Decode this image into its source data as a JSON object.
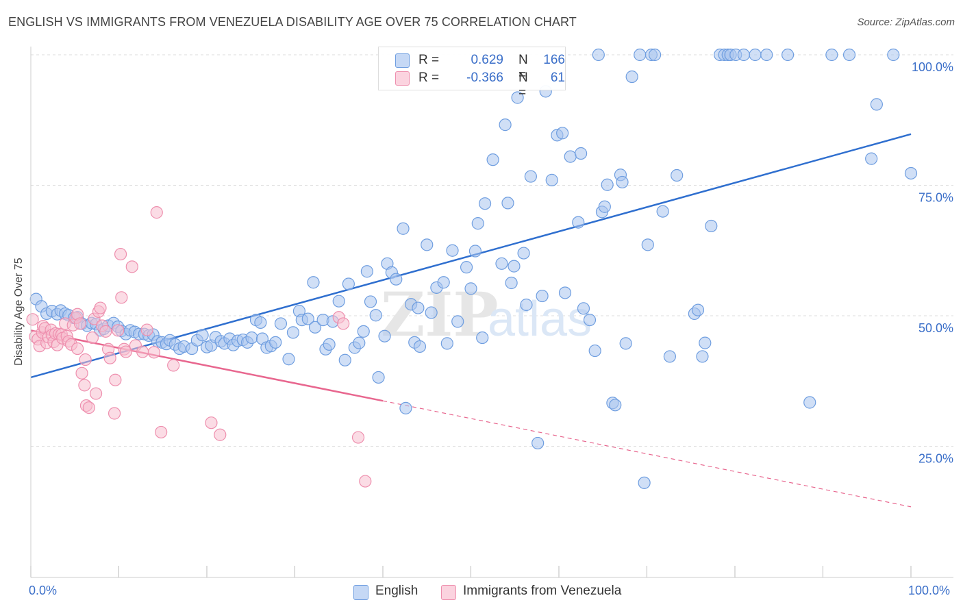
{
  "title": "ENGLISH VS IMMIGRANTS FROM VENEZUELA DISABILITY AGE OVER 75 CORRELATION CHART",
  "source": "Source: ZipAtlas.com",
  "watermark": "ZIPatlas",
  "legend_top": {
    "rows": [
      {
        "r_label": "R =",
        "r_value": "0.629",
        "n_label": "N =",
        "n_value": "166",
        "color": "#8fb3e8"
      },
      {
        "r_label": "R =",
        "r_value": "-0.366",
        "n_label": "N =",
        "n_value": "61",
        "color": "#f4a9c0"
      }
    ]
  },
  "legend_bottom": [
    {
      "label": "English",
      "color": "#8fb3e8"
    },
    {
      "label": "Immigrants from Venezuela",
      "color": "#f4a9c0"
    }
  ],
  "colors": {
    "blue_fill": "#a9c5ee",
    "blue_stroke": "#6f9ee0",
    "blue_line": "#2f6fcf",
    "pink_fill": "#f7bfd0",
    "pink_stroke": "#ee8fae",
    "pink_line": "#e8678f",
    "grid": "#dddddd",
    "tick_text": "#3b6fc9"
  },
  "chart_data": {
    "type": "scatter",
    "title": "ENGLISH VS IMMIGRANTS FROM VENEZUELA DISABILITY AGE OVER 75 CORRELATION CHART",
    "xlabel": "",
    "ylabel": "Disability Age Over 75",
    "xlim": [
      0,
      100
    ],
    "ylim": [
      0,
      102
    ],
    "x_tick_labels": [
      "0.0%",
      "100.0%"
    ],
    "y_ticks": [
      25,
      50,
      75,
      100
    ],
    "y_tick_labels": [
      "25.0%",
      "50.0%",
      "75.0%",
      "100.0%"
    ],
    "grid": true,
    "legend_position": "top-center",
    "series": [
      {
        "name": "English",
        "r": 0.629,
        "n": 166,
        "trend": {
          "x": [
            0,
            100
          ],
          "y": [
            38.2,
            84.8
          ]
        },
        "points": [
          [
            0.6,
            53.2
          ],
          [
            1.2,
            51.8
          ],
          [
            1.8,
            50.4
          ],
          [
            2.4,
            50.9
          ],
          [
            3.0,
            50.3
          ],
          [
            3.4,
            51.0
          ],
          [
            3.9,
            50.4
          ],
          [
            4.3,
            50.1
          ],
          [
            4.9,
            49.6
          ],
          [
            5.3,
            49.7
          ],
          [
            5.8,
            48.5
          ],
          [
            6.4,
            48.1
          ],
          [
            6.9,
            48.6
          ],
          [
            7.4,
            48.4
          ],
          [
            7.9,
            47.2
          ],
          [
            8.3,
            47.5
          ],
          [
            8.8,
            48.1
          ],
          [
            9.4,
            48.6
          ],
          [
            9.9,
            47.9
          ],
          [
            10.3,
            47.1
          ],
          [
            10.8,
            46.5
          ],
          [
            11.3,
            47.2
          ],
          [
            11.8,
            46.9
          ],
          [
            12.3,
            46.5
          ],
          [
            12.9,
            46.5
          ],
          [
            13.4,
            46.2
          ],
          [
            13.9,
            46.4
          ],
          [
            14.4,
            45.1
          ],
          [
            14.9,
            44.9
          ],
          [
            15.4,
            44.6
          ],
          [
            15.8,
            45.3
          ],
          [
            16.4,
            44.5
          ],
          [
            16.9,
            43.7
          ],
          [
            17.4,
            44.1
          ],
          [
            18.3,
            43.7
          ],
          [
            18.9,
            45.3
          ],
          [
            19.5,
            46.3
          ],
          [
            20.0,
            44.0
          ],
          [
            20.5,
            44.3
          ],
          [
            21.0,
            45.9
          ],
          [
            21.6,
            45.1
          ],
          [
            22.0,
            44.7
          ],
          [
            22.6,
            45.6
          ],
          [
            23.0,
            44.4
          ],
          [
            23.5,
            45.2
          ],
          [
            24.1,
            45.4
          ],
          [
            24.6,
            44.9
          ],
          [
            25.1,
            45.8
          ],
          [
            25.6,
            49.2
          ],
          [
            26.1,
            48.7
          ],
          [
            26.3,
            45.6
          ],
          [
            26.8,
            43.9
          ],
          [
            27.3,
            44.2
          ],
          [
            27.8,
            44.9
          ],
          [
            28.4,
            48.5
          ],
          [
            29.3,
            41.7
          ],
          [
            29.8,
            46.8
          ],
          [
            30.5,
            50.9
          ],
          [
            30.8,
            49.2
          ],
          [
            31.5,
            49.4
          ],
          [
            32.1,
            56.4
          ],
          [
            32.3,
            47.8
          ],
          [
            33.2,
            49.2
          ],
          [
            33.5,
            43.6
          ],
          [
            33.9,
            44.5
          ],
          [
            34.3,
            48.9
          ],
          [
            35.0,
            52.8
          ],
          [
            35.7,
            41.5
          ],
          [
            36.1,
            56.1
          ],
          [
            36.8,
            43.9
          ],
          [
            37.3,
            44.8
          ],
          [
            37.8,
            47.0
          ],
          [
            38.2,
            58.5
          ],
          [
            38.6,
            52.7
          ],
          [
            39.2,
            50.1
          ],
          [
            39.5,
            38.2
          ],
          [
            40.2,
            46.1
          ],
          [
            40.5,
            60.0
          ],
          [
            41.0,
            58.3
          ],
          [
            41.5,
            57.0
          ],
          [
            42.3,
            66.7
          ],
          [
            42.6,
            32.3
          ],
          [
            43.2,
            52.2
          ],
          [
            43.6,
            44.9
          ],
          [
            44.0,
            51.5
          ],
          [
            44.2,
            44.1
          ],
          [
            45.0,
            63.6
          ],
          [
            45.5,
            50.6
          ],
          [
            46.1,
            55.4
          ],
          [
            46.9,
            56.4
          ],
          [
            47.3,
            44.7
          ],
          [
            47.9,
            62.5
          ],
          [
            48.5,
            48.9
          ],
          [
            49.5,
            59.3
          ],
          [
            50.0,
            55.2
          ],
          [
            50.5,
            62.4
          ],
          [
            50.8,
            67.7
          ],
          [
            51.3,
            45.8
          ],
          [
            51.6,
            71.5
          ],
          [
            52.5,
            79.9
          ],
          [
            53.5,
            60.0
          ],
          [
            53.9,
            86.6
          ],
          [
            54.2,
            71.6
          ],
          [
            54.6,
            56.3
          ],
          [
            54.9,
            59.5
          ],
          [
            55.3,
            91.8
          ],
          [
            56.0,
            62.0
          ],
          [
            56.3,
            52.1
          ],
          [
            56.8,
            76.7
          ],
          [
            57.6,
            25.6
          ],
          [
            58.1,
            53.8
          ],
          [
            58.5,
            93.0
          ],
          [
            59.2,
            76.0
          ],
          [
            59.8,
            84.6
          ],
          [
            60.4,
            85.0
          ],
          [
            60.7,
            54.4
          ],
          [
            61.3,
            80.5
          ],
          [
            62.2,
            67.9
          ],
          [
            62.5,
            81.1
          ],
          [
            62.8,
            51.4
          ],
          [
            63.5,
            49.2
          ],
          [
            64.1,
            43.3
          ],
          [
            64.5,
            100.0
          ],
          [
            64.9,
            69.9
          ],
          [
            65.2,
            70.9
          ],
          [
            65.5,
            75.1
          ],
          [
            66.1,
            33.3
          ],
          [
            66.4,
            32.9
          ],
          [
            67.0,
            77.0
          ],
          [
            67.2,
            75.6
          ],
          [
            67.6,
            44.7
          ],
          [
            68.3,
            95.8
          ],
          [
            69.2,
            100.0
          ],
          [
            69.7,
            18.0
          ],
          [
            70.1,
            63.6
          ],
          [
            70.5,
            100.0
          ],
          [
            70.9,
            100.0
          ],
          [
            71.8,
            70.0
          ],
          [
            72.6,
            42.2
          ],
          [
            73.4,
            76.9
          ],
          [
            75.4,
            50.4
          ],
          [
            75.8,
            51.1
          ],
          [
            76.3,
            42.2
          ],
          [
            76.6,
            44.8
          ],
          [
            77.3,
            67.2
          ],
          [
            78.3,
            100.0
          ],
          [
            78.8,
            100.0
          ],
          [
            79.2,
            100.0
          ],
          [
            79.5,
            100.0
          ],
          [
            80.1,
            100.0
          ],
          [
            81.0,
            100.0
          ],
          [
            82.3,
            100.0
          ],
          [
            83.6,
            100.0
          ],
          [
            86.0,
            100.0
          ],
          [
            88.5,
            33.4
          ],
          [
            91.0,
            100.0
          ],
          [
            93.0,
            100.0
          ],
          [
            95.5,
            80.1
          ],
          [
            96.1,
            90.5
          ],
          [
            98.0,
            100.0
          ],
          [
            100.0,
            77.3
          ]
        ]
      },
      {
        "name": "Immigrants from Venezuela",
        "r": -0.366,
        "n": 61,
        "trend": {
          "x": [
            0,
            40
          ],
          "y": [
            47.2,
            33.7
          ]
        },
        "trend_dashed": {
          "x": [
            40,
            100
          ],
          "y": [
            33.7,
            13.4
          ]
        },
        "points": [
          [
            0.2,
            49.3
          ],
          [
            0.5,
            46.0
          ],
          [
            0.8,
            45.5
          ],
          [
            1.0,
            44.2
          ],
          [
            1.3,
            46.8
          ],
          [
            1.4,
            48.0
          ],
          [
            1.6,
            47.6
          ],
          [
            1.8,
            44.8
          ],
          [
            2.0,
            45.9
          ],
          [
            2.3,
            47.3
          ],
          [
            2.4,
            46.3
          ],
          [
            2.6,
            45.0
          ],
          [
            2.8,
            46.6
          ],
          [
            3.0,
            44.4
          ],
          [
            3.2,
            46.5
          ],
          [
            3.5,
            46.4
          ],
          [
            3.6,
            45.7
          ],
          [
            3.9,
            48.5
          ],
          [
            4.1,
            46.1
          ],
          [
            4.3,
            45.1
          ],
          [
            4.6,
            44.5
          ],
          [
            4.8,
            48.2
          ],
          [
            5.1,
            49.6
          ],
          [
            5.3,
            50.3
          ],
          [
            5.3,
            43.7
          ],
          [
            5.6,
            48.5
          ],
          [
            5.8,
            39.0
          ],
          [
            6.1,
            36.7
          ],
          [
            6.2,
            41.6
          ],
          [
            6.3,
            32.8
          ],
          [
            6.6,
            32.4
          ],
          [
            7.0,
            45.8
          ],
          [
            7.2,
            49.4
          ],
          [
            7.4,
            35.1
          ],
          [
            7.7,
            50.8
          ],
          [
            7.9,
            51.5
          ],
          [
            8.1,
            48.1
          ],
          [
            8.5,
            47.0
          ],
          [
            8.8,
            43.6
          ],
          [
            9.0,
            41.9
          ],
          [
            9.5,
            31.3
          ],
          [
            9.6,
            37.7
          ],
          [
            9.9,
            47.2
          ],
          [
            10.2,
            61.8
          ],
          [
            10.3,
            53.5
          ],
          [
            10.6,
            43.6
          ],
          [
            10.8,
            43.1
          ],
          [
            11.5,
            59.4
          ],
          [
            11.9,
            44.3
          ],
          [
            12.7,
            43.1
          ],
          [
            13.2,
            47.3
          ],
          [
            14.3,
            69.8
          ],
          [
            14.8,
            27.7
          ],
          [
            16.2,
            40.5
          ],
          [
            20.5,
            29.5
          ],
          [
            21.5,
            27.2
          ],
          [
            35.0,
            49.7
          ],
          [
            35.5,
            48.5
          ],
          [
            37.2,
            26.7
          ],
          [
            38.0,
            18.3
          ],
          [
            14.0,
            43.0
          ]
        ]
      }
    ]
  }
}
